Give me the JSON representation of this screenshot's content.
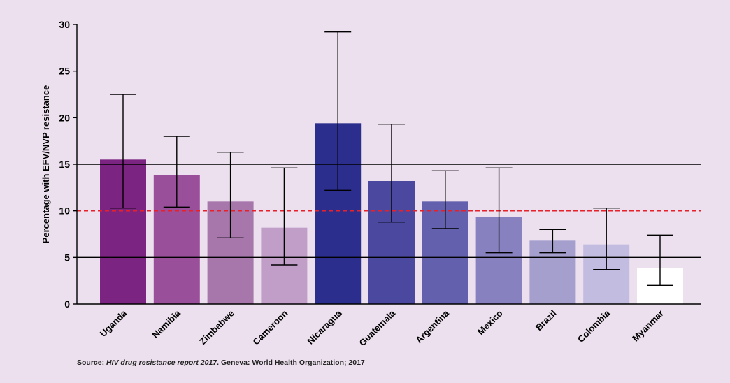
{
  "chart_data": {
    "type": "bar",
    "title": "",
    "xlabel": "",
    "ylabel": "Percentage with EFV/NVP resistance",
    "ylim": [
      0,
      30
    ],
    "yticks": [
      0,
      5,
      10,
      15,
      20,
      25,
      30
    ],
    "grid": false,
    "reference_lines": [
      {
        "value": 15,
        "style": "solid",
        "color": "#000000"
      },
      {
        "value": 10,
        "style": "dashed",
        "color": "#e8202a"
      },
      {
        "value": 5,
        "style": "solid",
        "color": "#000000"
      }
    ],
    "categories": [
      "Uganda",
      "Namibia",
      "Zimbabwe",
      "Cameroon",
      "Nicaragua",
      "Guatemala",
      "Argentina",
      "Mexico",
      "Brazil",
      "Colombia",
      "Myanmar"
    ],
    "values": [
      15.5,
      13.8,
      11.0,
      8.2,
      19.4,
      13.2,
      11.0,
      9.3,
      6.8,
      6.4,
      3.9
    ],
    "error_low": [
      10.3,
      10.4,
      7.1,
      4.2,
      12.2,
      8.8,
      8.1,
      5.5,
      5.5,
      3.7,
      2.0
    ],
    "error_high": [
      22.5,
      18.0,
      16.3,
      14.6,
      29.2,
      19.3,
      14.3,
      14.6,
      8.0,
      10.3,
      7.4
    ],
    "colors": [
      "#7b2481",
      "#9a4f9b",
      "#a777ac",
      "#c09ec8",
      "#2b2e8c",
      "#4a489f",
      "#6360ad",
      "#8781bf",
      "#a59fce",
      "#c1bce0",
      "#ffffff"
    ]
  },
  "source": {
    "prefix": "Source: ",
    "title": "HIV drug resistance report 2017",
    "suffix": ". Geneva: World Health Organization; 2017"
  }
}
